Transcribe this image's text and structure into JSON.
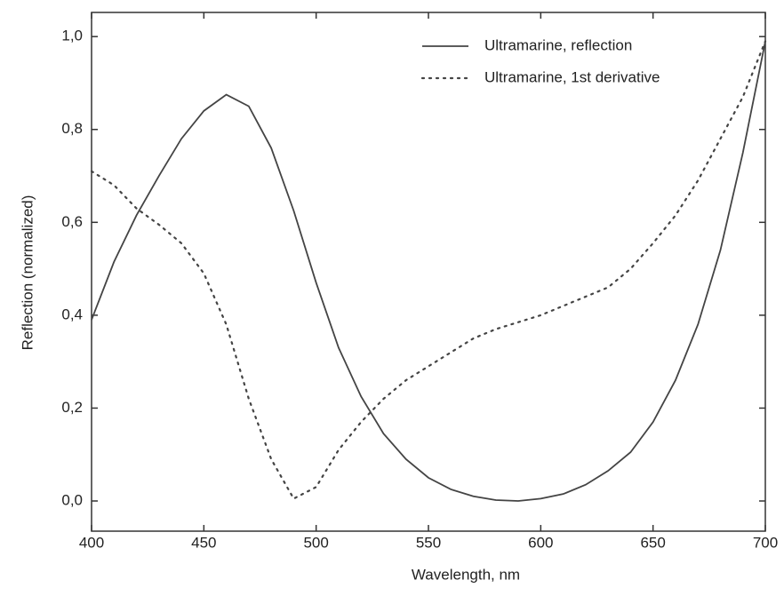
{
  "chart_data": {
    "type": "line",
    "x_label": "Wavelength, nm",
    "y_label": "Reflection (normalized)",
    "x": [
      400,
      410,
      420,
      430,
      440,
      450,
      460,
      470,
      480,
      490,
      500,
      510,
      520,
      530,
      540,
      550,
      560,
      570,
      580,
      590,
      600,
      610,
      620,
      630,
      640,
      650,
      660,
      670,
      680,
      690,
      700
    ],
    "series": [
      {
        "name": "Ultramarine, reflection",
        "color": "#444444",
        "dash": "solid",
        "values": [
          0.39,
          0.515,
          0.615,
          0.7,
          0.78,
          0.84,
          0.875,
          0.85,
          0.76,
          0.625,
          0.47,
          0.33,
          0.225,
          0.145,
          0.09,
          0.05,
          0.025,
          0.01,
          0.002,
          0.0,
          0.005,
          0.015,
          0.035,
          0.065,
          0.105,
          0.17,
          0.26,
          0.38,
          0.54,
          0.75,
          0.99
        ]
      },
      {
        "name": "Ultramarine, 1st derivative",
        "color": "#444444",
        "dash": "dotted",
        "values": [
          0.71,
          0.68,
          0.63,
          0.595,
          0.555,
          0.49,
          0.38,
          0.22,
          0.09,
          0.005,
          0.03,
          0.11,
          0.17,
          0.22,
          0.26,
          0.29,
          0.32,
          0.35,
          0.37,
          0.385,
          0.4,
          0.42,
          0.44,
          0.46,
          0.5,
          0.555,
          0.615,
          0.69,
          0.78,
          0.87,
          0.99
        ]
      }
    ],
    "xlim": [
      400,
      700
    ],
    "xticks": [
      400,
      450,
      500,
      550,
      600,
      650,
      700
    ],
    "ylim": [
      -0.065,
      1.052
    ],
    "yticks": [
      {
        "value": 0,
        "label": "0,0"
      },
      {
        "value": 0.2,
        "label": "0,2"
      },
      {
        "value": 0.4,
        "label": "0,4"
      },
      {
        "value": 0.6,
        "label": "0,6"
      },
      {
        "value": 0.8,
        "label": "0,8"
      },
      {
        "value": 1.0,
        "label": "1,0"
      }
    ],
    "legend": "upper-right",
    "grid": false
  }
}
